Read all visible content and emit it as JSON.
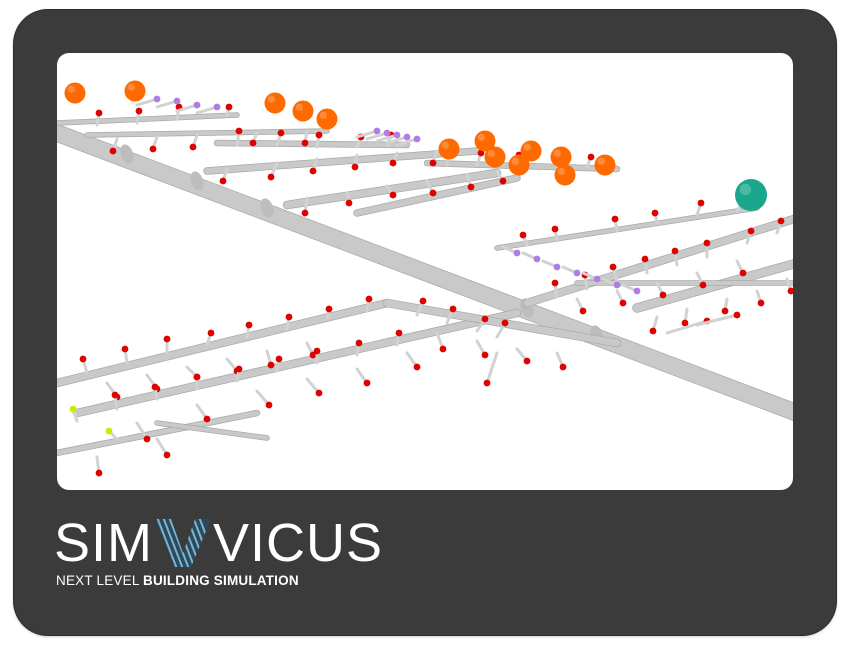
{
  "window": {
    "frame_color": "#3b3b3b",
    "viewport_background": "#ffffff"
  },
  "scene": {
    "description_icon": "pipe-network-3d",
    "colors": {
      "pipe": "#c9c9c9",
      "pipe_shade": "#a9a9a9",
      "consumer_node": "#e00000",
      "mixer_node": "#b27be8",
      "pump_node": "#ff6a00",
      "source_node": "#1aa68a",
      "auxiliary_node": "#c6ef00"
    }
  },
  "brand": {
    "logo_left": "SIM",
    "logo_right": "VICUS",
    "tagline_regular": "NEXT LEVEL ",
    "tagline_bold": "BUILDING SIMULATION",
    "logo_mark_icon": "striped-v-icon",
    "colors": {
      "text": "#ffffff",
      "mark_dark": "#2b4a5e",
      "mark_light": "#7fb4cf"
    }
  }
}
